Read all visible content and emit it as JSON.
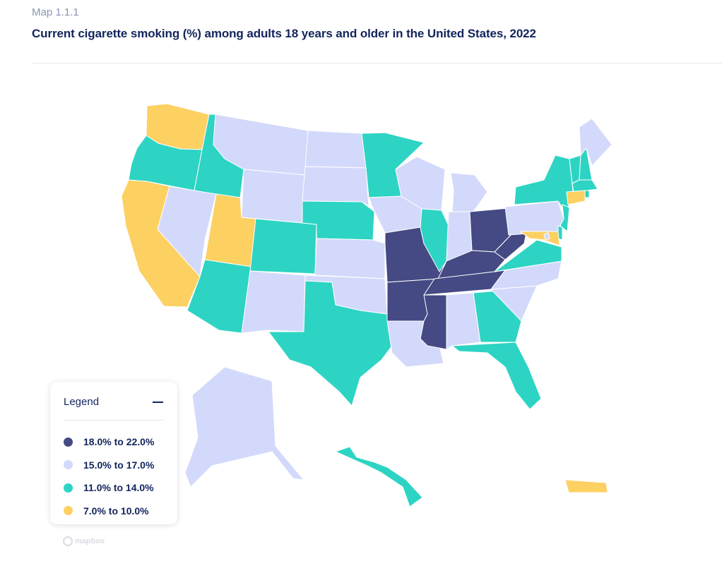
{
  "header": {
    "kicker": "Map 1.1.1",
    "title": "Current cigarette smoking (%) among adults 18 years and older in the United States, 2022"
  },
  "legend": {
    "title": "Legend",
    "toggle_icon": "minus-icon",
    "items": [
      {
        "label": "18.0% to 22.0%",
        "color": "#454a84"
      },
      {
        "label": "15.0% to 17.0%",
        "color": "#d3d9fa"
      },
      {
        "label": "11.0% to 14.0%",
        "color": "#2dd4c3"
      },
      {
        "label": "7.0% to 10.0%",
        "color": "#fdd062"
      }
    ]
  },
  "map": {
    "type": "choropleth",
    "region": "United States",
    "year": 2022,
    "bins": {
      "high": "18.0% to 22.0%",
      "mid": "15.0% to 17.0%",
      "low": "11.0% to 14.0%",
      "lowest": "7.0% to 10.0%"
    },
    "states": {
      "WA": "lowest",
      "OR": "low",
      "CA": "lowest",
      "NV": "mid",
      "ID": "low",
      "MT": "mid",
      "WY": "mid",
      "UT": "lowest",
      "AZ": "low",
      "CO": "low",
      "NM": "mid",
      "ND": "mid",
      "SD": "mid",
      "NE": "low",
      "KS": "mid",
      "OK": "mid",
      "TX": "low",
      "MN": "low",
      "IA": "mid",
      "MO": "high",
      "AR": "high",
      "LA": "mid",
      "WI": "mid",
      "IL": "low",
      "MI": "mid",
      "IN": "mid",
      "OH": "high",
      "KY": "high",
      "TN": "high",
      "MS": "high",
      "AL": "mid",
      "GA": "low",
      "FL": "low",
      "SC": "mid",
      "NC": "mid",
      "VA": "low",
      "WV": "high",
      "PA": "mid",
      "NY": "low",
      "VT": "low",
      "NH": "low",
      "ME": "mid",
      "MA": "low",
      "RI": "low",
      "CT": "lowest",
      "NJ": "low",
      "DE": "low",
      "MD": "lowest",
      "DC": "mid",
      "AK": "mid",
      "HI": "low",
      "PR": "lowest"
    }
  },
  "attribution": {
    "label": "mapbox",
    "icon": "mapbox-logo-icon"
  }
}
